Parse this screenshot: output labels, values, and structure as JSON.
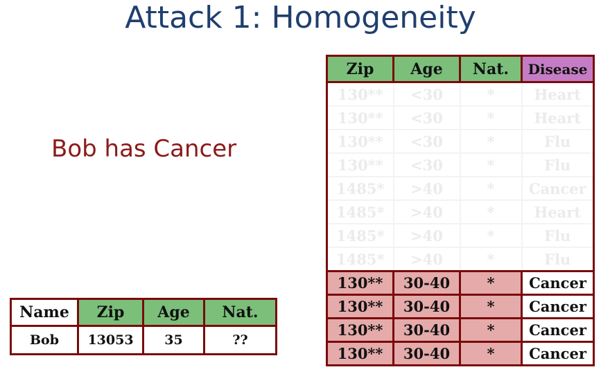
{
  "title": "Attack 1: Homogeneity",
  "statement": "Bob has Cancer",
  "bob_table": {
    "headers": [
      "Name",
      "Zip",
      "Age",
      "Nat."
    ],
    "row": [
      "Bob",
      "13053",
      "35",
      "??"
    ]
  },
  "anon_table": {
    "headers": [
      "Zip",
      "Age",
      "Nat.",
      "Disease"
    ],
    "faded_rows": [
      [
        "130**",
        "<30",
        "*",
        "Heart"
      ],
      [
        "130**",
        "<30",
        "*",
        "Heart"
      ],
      [
        "130**",
        "<30",
        "*",
        "Flu"
      ],
      [
        "130**",
        "<30",
        "*",
        "Flu"
      ],
      [
        "1485*",
        ">40",
        "*",
        "Cancer"
      ],
      [
        "1485*",
        ">40",
        "*",
        "Heart"
      ],
      [
        "1485*",
        ">40",
        "*",
        "Flu"
      ],
      [
        "1485*",
        ">40",
        "*",
        "Flu"
      ]
    ],
    "highlighted_rows": [
      [
        "130**",
        "30-40",
        "*",
        "Cancer"
      ],
      [
        "130**",
        "30-40",
        "*",
        "Cancer"
      ],
      [
        "130**",
        "30-40",
        "*",
        "Cancer"
      ],
      [
        "130**",
        "30-40",
        "*",
        "Cancer"
      ]
    ]
  },
  "colors": {
    "title": "#1f3f6e",
    "statement": "#8b1a1a",
    "border": "#7a0a0a",
    "quasi_identifier_header": "#7bbf7b",
    "sensitive_header": "#c47dc4",
    "highlight_row": "#e5aaaa"
  }
}
